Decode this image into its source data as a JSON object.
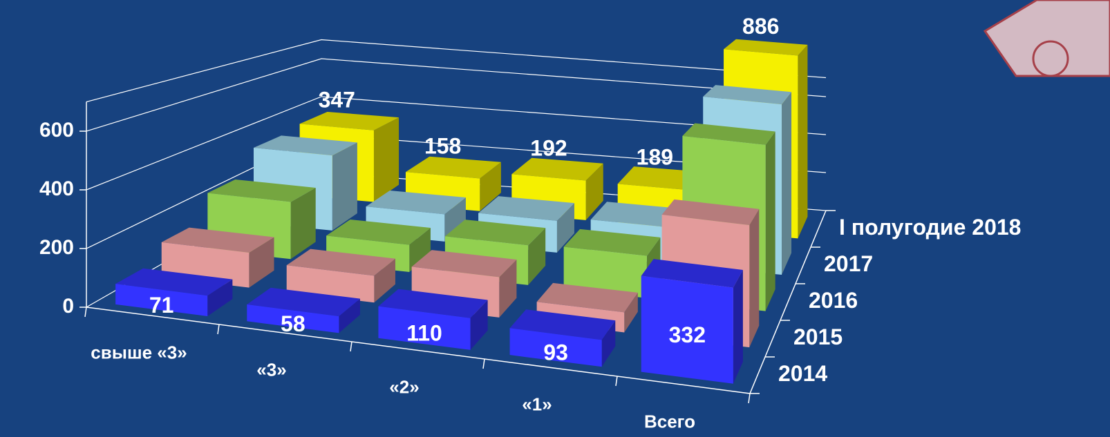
{
  "chart_data": {
    "type": "bar3d",
    "categories": [
      "свыше «3»",
      "«3»",
      "«2»",
      "«1»",
      "Всего"
    ],
    "series": [
      {
        "name": "2014",
        "color": "#3333ff",
        "values": [
          71,
          58,
          110,
          93,
          332
        ],
        "show_labels": true
      },
      {
        "name": "2015",
        "color": "#e39b9b",
        "values": [
          130,
          100,
          150,
          75,
          455
        ]
      },
      {
        "name": "2016",
        "color": "#92d050",
        "values": [
          230,
          110,
          160,
          170,
          670
        ]
      },
      {
        "name": "2017",
        "color": "#9dd3e6",
        "values": [
          330,
          120,
          140,
          160,
          750
        ]
      },
      {
        "name": "I полугодие 2018",
        "color": "#f5f000",
        "values": [
          347,
          158,
          192,
          189,
          886
        ],
        "show_labels": true
      }
    ],
    "ylim": [
      0,
      700
    ],
    "yticks": [
      0,
      200,
      400,
      600
    ],
    "grid": true
  }
}
